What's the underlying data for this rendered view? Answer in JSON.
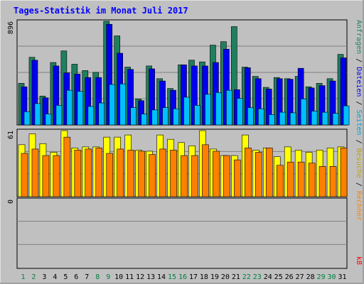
{
  "chart_data": {
    "type": "bar",
    "title": "Tages-Statistik im Monat Juli 2017",
    "colors": {
      "background": "#c0c0c0",
      "title": "#0000ff",
      "anfragen": "#1f7f5f",
      "dateien": "#0000ee",
      "seiten": "#00bfff",
      "besuche": "#ffff00",
      "rechner": "#ff8000",
      "kb": "#ff0000",
      "weekend_tick": "#008040",
      "weekday_tick": "#000000"
    },
    "categories": [
      "1",
      "2",
      "3",
      "4",
      "5",
      "6",
      "7",
      "8",
      "9",
      "10",
      "11",
      "12",
      "13",
      "14",
      "15",
      "16",
      "17",
      "18",
      "19",
      "20",
      "21",
      "22",
      "23",
      "24",
      "25",
      "26",
      "27",
      "28",
      "29",
      "30",
      "31"
    ],
    "weekend_days": [
      "1",
      "2",
      "8",
      "9",
      "15",
      "16",
      "22",
      "23",
      "29",
      "30"
    ],
    "right_labels": {
      "anfragen": "Anfragen",
      "dateien": "Dateien",
      "seiten": "Seiten",
      "besuche": "Besuche",
      "rechner": "Rechner",
      "kb": "kB",
      "separator": " / "
    },
    "panels": [
      {
        "id": "hits",
        "ymax": 896,
        "max_label": "896",
        "series": [
          {
            "key": "anfragen",
            "values": [
              360,
              585,
              250,
              540,
              640,
              525,
              470,
              455,
              896,
              770,
              500,
              225,
              510,
              400,
              315,
              520,
              560,
              545,
              690,
              720,
              850,
              500,
              420,
              325,
              410,
              400,
              420,
              330,
              360,
              400,
              610
            ]
          },
          {
            "key": "dateien",
            "values": [
              330,
              560,
              235,
              510,
              450,
              440,
              410,
              410,
              870,
              620,
              480,
              210,
              485,
              380,
              300,
              520,
              510,
              510,
              540,
              655,
              305,
              495,
              400,
              310,
              400,
              395,
              490,
              320,
              340,
              380,
              580
            ]
          },
          {
            "key": "seiten",
            "values": [
              115,
              185,
              95,
              170,
              300,
              290,
              160,
              190,
              350,
              355,
              150,
              95,
              130,
              150,
              140,
              240,
              170,
              265,
              280,
              300,
              230,
              150,
              140,
              90,
              110,
              105,
              225,
              120,
              110,
              100,
              165
            ]
          }
        ]
      },
      {
        "id": "visits",
        "ymax": 61,
        "max_label": "61",
        "series": [
          {
            "key": "besuche",
            "values": [
              48,
              58,
              49,
              41,
              61,
              45,
              46,
              46,
              55,
              55,
              57,
              43,
              42,
              57,
              53,
              50,
              47,
              61,
              44,
              38,
              38,
              57,
              43,
              45,
              37,
              46,
              43,
              41,
              43,
              45,
              46
            ]
          },
          {
            "key": "rechner",
            "values": [
              40,
              44,
              38,
              38,
              55,
              43,
              44,
              45,
              40,
              44,
              43,
              42,
              39,
              44,
              43,
              38,
              38,
              48,
              42,
              38,
              34,
              45,
              41,
              45,
              29,
              32,
              32,
              31,
              28,
              28,
              45
            ]
          }
        ]
      },
      {
        "id": "kb",
        "ymax": 0,
        "max_label": "0",
        "series": [
          {
            "key": "kb",
            "values": [
              0,
              0,
              0,
              0,
              0,
              0,
              0,
              0,
              0,
              0,
              0,
              0,
              0,
              0,
              0,
              0,
              0,
              0,
              0,
              0,
              0,
              0,
              0,
              0,
              0,
              0,
              0,
              0,
              0,
              0,
              0
            ]
          }
        ]
      }
    ]
  }
}
